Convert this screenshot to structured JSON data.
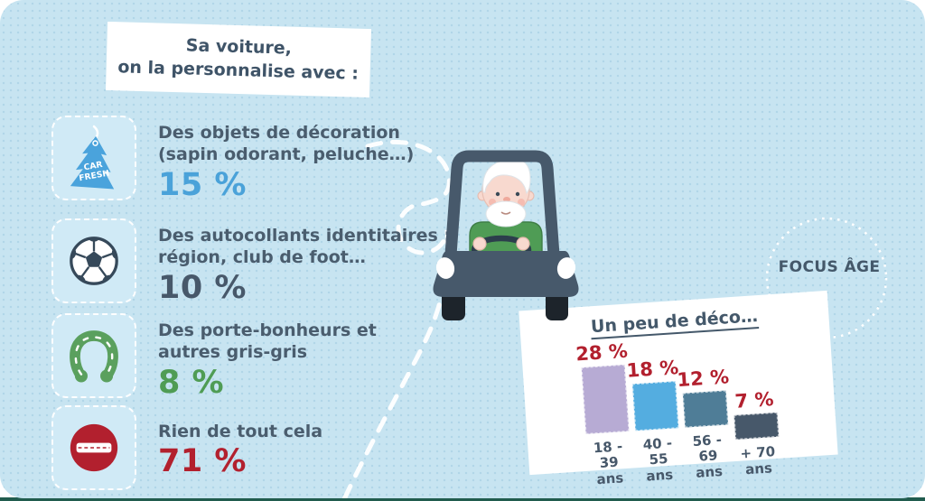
{
  "header": {
    "title_line1": "Sa voiture,",
    "title_line2": "on la personnalise avec :"
  },
  "items": [
    {
      "icon": "air-freshener-tree-icon",
      "icon_text_line1": "CAR",
      "icon_text_line2": "FRESH",
      "line1": "Des objets de décoration",
      "line2": "(sapin odorant, peluche…)",
      "value": "15 %",
      "value_color": "#4aa2d9"
    },
    {
      "icon": "soccer-ball-icon",
      "line1": "Des autocollants identitaires :",
      "line2": "région, club de foot…",
      "value": "10 %",
      "value_color": "#47586a"
    },
    {
      "icon": "horseshoe-icon",
      "line1": "Des porte-bonheurs et",
      "line2": "autres gris-gris",
      "value": "8 %",
      "value_color": "#4f9c54"
    },
    {
      "icon": "no-entry-icon",
      "line1": "Rien de tout cela",
      "line2": "",
      "value": "71 %",
      "value_color": "#b2202e"
    }
  ],
  "focus": {
    "label": "FOCUS ÂGE"
  },
  "chart_data": {
    "type": "bar",
    "title": "Un peu de déco…",
    "categories": [
      "18 - 39\nans",
      "40 - 55\nans",
      "56 - 69\nans",
      "+ 70\nans"
    ],
    "values": [
      28,
      18,
      12,
      7
    ],
    "value_labels": [
      "28 %",
      "18 %",
      "12 %",
      "7 %"
    ],
    "bar_colors": [
      "#b7abd4",
      "#54ade0",
      "#4f7d97",
      "#47586a"
    ],
    "value_label_color": "#b2202e",
    "ylim": [
      0,
      30
    ],
    "grid": false,
    "legend": false
  },
  "colors": {
    "background": "#c7e4f1",
    "panel": "#ffffff",
    "text": "#47586a",
    "accent_red": "#b2202e",
    "accent_blue": "#4aa2d9",
    "accent_green": "#4f9c54",
    "car_body": "#47596b",
    "bottom_strip": "#215c4e"
  }
}
